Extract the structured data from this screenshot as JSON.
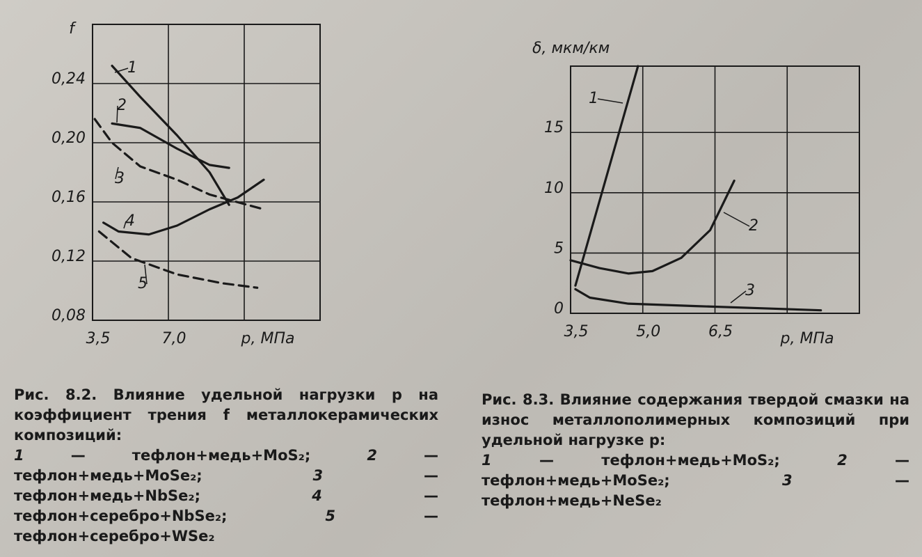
{
  "chart_data": [
    {
      "type": "line",
      "ylabel": "f",
      "xlabel": "p, МПа",
      "xlim": [
        3.5,
        14.0
      ],
      "ylim": [
        0.08,
        0.28
      ],
      "xticks": [
        {
          "value": 3.5,
          "label": "3,5"
        },
        {
          "value": 7.0,
          "label": "7,0"
        }
      ],
      "yticks": [
        {
          "value": 0.08,
          "label": "0,08"
        },
        {
          "value": 0.12,
          "label": "0,12"
        },
        {
          "value": 0.16,
          "label": "0,16"
        },
        {
          "value": 0.2,
          "label": "0,20"
        },
        {
          "value": 0.24,
          "label": "0,24"
        }
      ],
      "grid": true,
      "series": [
        {
          "name": "1",
          "color": "#1a1a1a",
          "dash": false,
          "x": [
            4.4,
            5.7,
            7.4,
            8.9,
            9.8
          ],
          "values": [
            0.252,
            0.231,
            0.205,
            0.18,
            0.158
          ]
        },
        {
          "name": "2",
          "color": "#1a1a1a",
          "dash": false,
          "x": [
            4.4,
            5.7,
            7.4,
            8.9,
            9.8
          ],
          "values": [
            0.213,
            0.21,
            0.196,
            0.185,
            0.183
          ]
        },
        {
          "name": "3",
          "color": "#1a1a1a",
          "dash": true,
          "x": [
            3.6,
            4.4,
            5.7,
            7.4,
            8.9,
            11.4
          ],
          "values": [
            0.216,
            0.2,
            0.184,
            0.175,
            0.165,
            0.155
          ]
        },
        {
          "name": "4",
          "color": "#1a1a1a",
          "dash": false,
          "x": [
            4.0,
            4.7,
            6.1,
            7.4,
            8.9,
            10.2,
            11.4
          ],
          "values": [
            0.146,
            0.14,
            0.138,
            0.144,
            0.155,
            0.163,
            0.175
          ]
        },
        {
          "name": "5",
          "color": "#1a1a1a",
          "dash": true,
          "x": [
            3.8,
            5.3,
            7.4,
            9.5,
            11.1
          ],
          "values": [
            0.14,
            0.122,
            0.111,
            0.105,
            0.102
          ]
        }
      ]
    },
    {
      "type": "line",
      "ylabel": "δ, мкм/км",
      "xlabel": "p, МПа",
      "xlim": [
        3.5,
        9.5
      ],
      "ylim": [
        0,
        20.5
      ],
      "xticks": [
        {
          "value": 3.5,
          "label": "3,5"
        },
        {
          "value": 5.0,
          "label": "5,0"
        },
        {
          "value": 6.5,
          "label": "6,5"
        }
      ],
      "yticks": [
        0,
        5,
        10,
        15
      ],
      "grid": true,
      "series": [
        {
          "name": "1",
          "color": "#1a1a1a",
          "dash": false,
          "x": [
            3.6,
            4.9
          ],
          "values": [
            2.3,
            20.5
          ]
        },
        {
          "name": "2",
          "color": "#1a1a1a",
          "dash": false,
          "x": [
            3.5,
            4.1,
            4.7,
            5.2,
            5.8,
            6.4,
            6.9
          ],
          "values": [
            4.4,
            3.75,
            3.3,
            3.5,
            4.6,
            6.9,
            11
          ]
        },
        {
          "name": "3",
          "color": "#1a1a1a",
          "dash": false,
          "x": [
            3.6,
            3.9,
            4.7,
            6.1,
            7.6,
            8.7
          ],
          "values": [
            2.0,
            1.3,
            0.8,
            0.6,
            0.4,
            0.25
          ]
        }
      ]
    }
  ],
  "captions": [
    {
      "title": "Рис. 8.2. Влияние удельной нагрузки p на коэффициент трения f металлокерамических композиций:",
      "items": [
        "тефлон+медь+MoS₂;",
        "тефлон+медь+MoSe₂;",
        "тефлон+медь+NbSe₂;",
        "тефлон+серебро+NbSe₂;",
        "тефлон+серебро+WSe₂"
      ]
    },
    {
      "title": "Рис. 8.3. Влияние содержания твердой смазки на износ металлополимерных композиций при удельной нагрузке p:",
      "items": [
        "тефлон+медь+MoS₂;",
        "тефлон+медь+MoSe₂;",
        "тефлон+медь+NeSe₂"
      ]
    }
  ]
}
